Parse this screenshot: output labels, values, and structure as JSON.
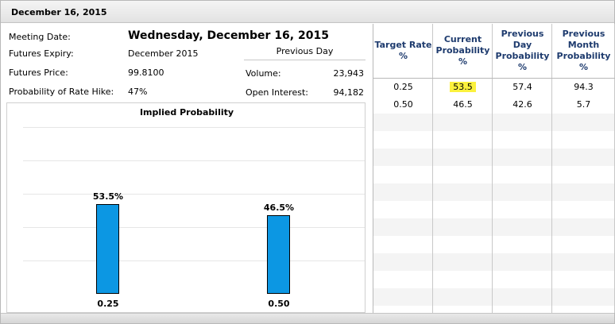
{
  "title": "December 16, 2015",
  "info": {
    "meeting_date_label": "Meeting Date:",
    "meeting_date_value": "Wednesday, December 16, 2015",
    "futures_expiry_label": "Futures Expiry:",
    "futures_expiry_value": "December 2015",
    "futures_price_label": "Futures Price:",
    "futures_price_value": "99.8100",
    "prob_hike_label": "Probability of Rate Hike:",
    "prob_hike_value": "47%",
    "previous_day_header": "Previous Day",
    "volume_label": "Volume:",
    "volume_value": "23,943",
    "open_interest_label": "Open Interest:",
    "open_interest_value": "94,182"
  },
  "chart_data": {
    "type": "bar",
    "title": "Implied Probability",
    "categories": [
      "0.25",
      "0.50"
    ],
    "values": [
      53.5,
      46.5
    ],
    "value_labels": [
      "53.5%",
      "46.5%"
    ],
    "ylim": [
      0,
      100
    ],
    "grid": true
  },
  "table": {
    "headers": [
      "Target Rate %",
      "Current Probability %",
      "Previous Day Probability %",
      "Previous Month Probability %"
    ],
    "rows": [
      [
        "0.25",
        "53.5",
        "57.4",
        "94.3"
      ],
      [
        "0.50",
        "46.5",
        "42.6",
        "5.7"
      ]
    ],
    "highlight_color": "#fbf13d"
  },
  "colors": {
    "bar": "#0c97e3",
    "header_text": "#1e3b6e"
  }
}
